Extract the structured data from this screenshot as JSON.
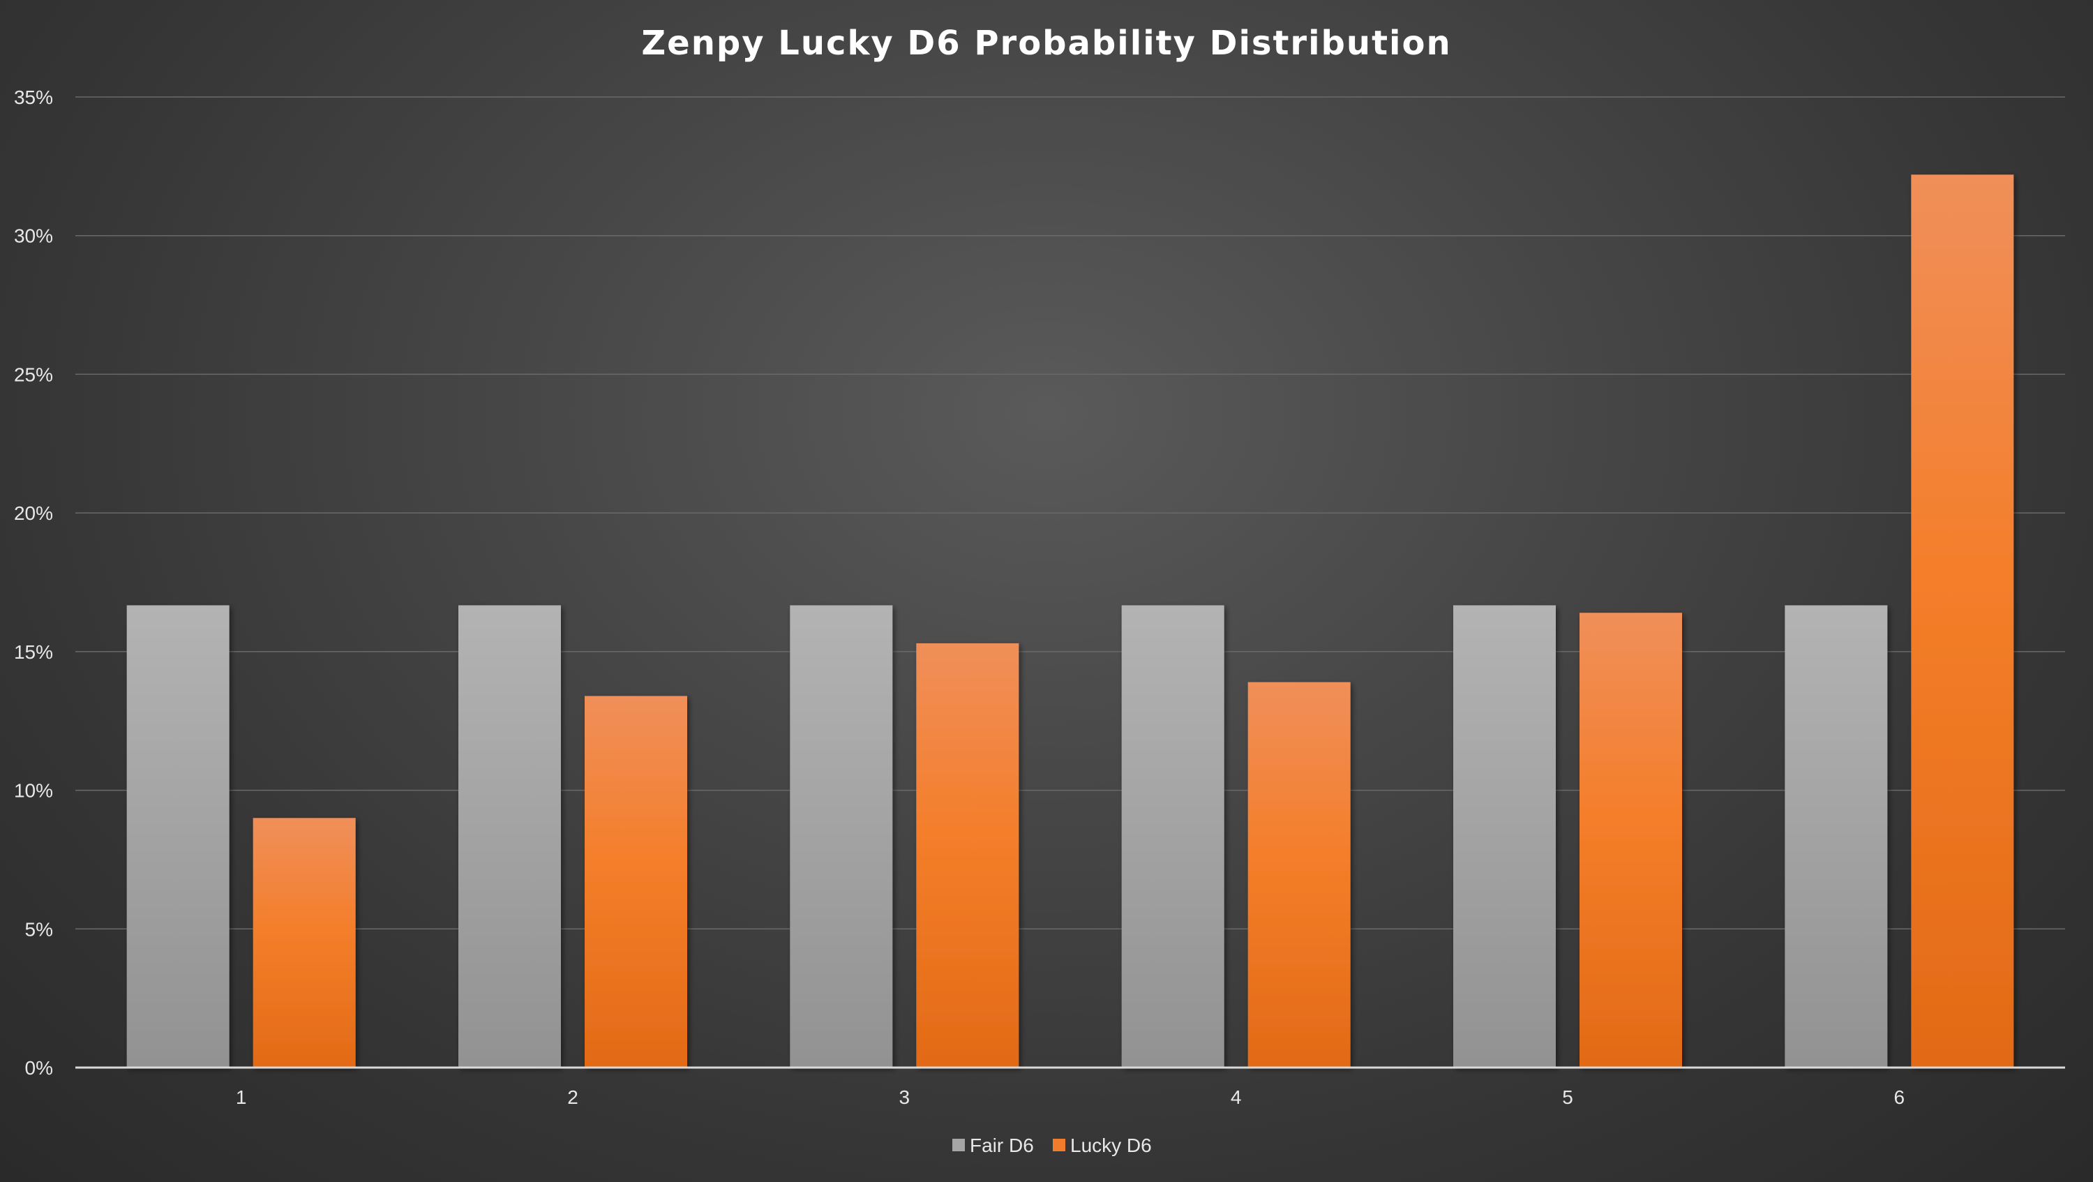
{
  "chart_data": {
    "type": "bar",
    "title": "Zenpy Lucky D6 Probability Distribution",
    "xlabel": "",
    "ylabel": "",
    "categories": [
      "1",
      "2",
      "3",
      "4",
      "5",
      "6"
    ],
    "series": [
      {
        "name": "Fair D6",
        "values": [
          16.67,
          16.67,
          16.67,
          16.67,
          16.67,
          16.67
        ],
        "color": "#a6a6a6"
      },
      {
        "name": "Lucky D6",
        "values": [
          9.0,
          13.4,
          15.3,
          13.9,
          16.4,
          32.2
        ],
        "color": "#f07d2c"
      }
    ],
    "ylim": [
      0,
      35
    ],
    "yticks": [
      0,
      5,
      10,
      15,
      20,
      25,
      30,
      35
    ],
    "ytick_labels": [
      "0%",
      "5%",
      "10%",
      "15%",
      "20%",
      "25%",
      "30%",
      "35%"
    ],
    "grid": true,
    "legend_position": "bottom"
  }
}
